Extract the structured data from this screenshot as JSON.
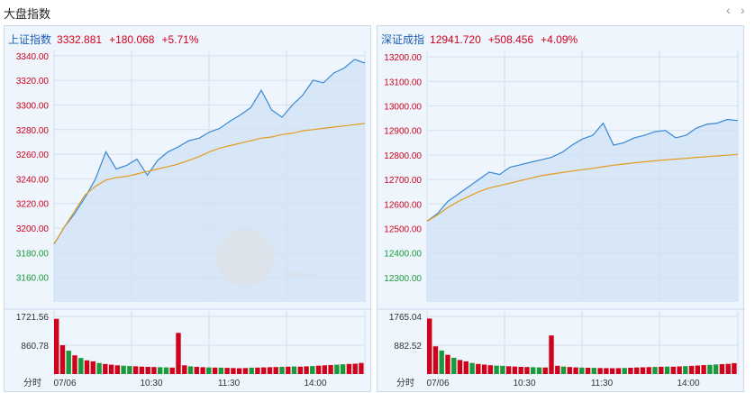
{
  "header": {
    "title": "大盘指数",
    "prev_icon": "‹",
    "next_icon": "›"
  },
  "watermark": {
    "text": "WikiFX"
  },
  "colors": {
    "up": "#d0021b",
    "down": "#1a9a3a",
    "line": "#3a87d4",
    "avg": "#e39b1e",
    "grid": "#d3e0ee"
  },
  "panels": [
    {
      "name": "上证指数",
      "value": "3332.881",
      "change": "+180.068",
      "percent": "+5.71%",
      "volume_label": "分时",
      "chart_data": {
        "type": "line",
        "xlabels": [
          "07/06",
          "10:30",
          "11:30",
          "14:00"
        ],
        "ylim": [
          3140,
          3345
        ],
        "yticks_up": [
          "3340.00",
          "3320.00",
          "3300.00",
          "3280.00",
          "3260.00",
          "3240.00",
          "3220.00",
          "3200.00"
        ],
        "yticks_down": [
          "3180.00",
          "3160.00"
        ],
        "volume_ticks": [
          "1721.56",
          "860.78"
        ],
        "volume_max": 1721.56,
        "series": [
          {
            "values": [
              3187,
              3201,
              3212,
              3225,
              3240,
              3262,
              3248,
              3251,
              3256,
              3243,
              3255,
              3262,
              3266,
              3271,
              3273,
              3278,
              3281,
              3287,
              3292,
              3298,
              3312,
              3296,
              3290,
              3300,
              3308,
              3320,
              3318,
              3326,
              3330,
              3337,
              3334
            ]
          },
          {
            "values": [
              3187,
              3201,
              3214,
              3227,
              3234,
              3239,
              3241,
              3242,
              3244,
              3246,
              3248,
              3250,
              3252,
              3255,
              3258,
              3262,
              3265,
              3267,
              3269,
              3271,
              3273,
              3274,
              3276,
              3277,
              3279,
              3280,
              3281,
              3282,
              3283,
              3284,
              3285
            ]
          }
        ],
        "volume": [
          1650,
          860,
          700,
          560,
          480,
          410,
          380,
          330,
          300,
          280,
          260,
          250,
          240,
          230,
          220,
          215,
          210,
          205,
          200,
          195,
          1230,
          260,
          230,
          215,
          205,
          200,
          195,
          190,
          185,
          180,
          175,
          180,
          190,
          195,
          200,
          205,
          210,
          215,
          220,
          225,
          220,
          230,
          240,
          250,
          260,
          270,
          280,
          290,
          300,
          310,
          330
        ]
      }
    },
    {
      "name": "深证成指",
      "value": "12941.720",
      "change": "+508.456",
      "percent": "+4.09%",
      "volume_label": "分时",
      "chart_data": {
        "type": "line",
        "xlabels": [
          "07/06",
          "10:30",
          "11:30",
          "14:00"
        ],
        "ylim": [
          12200,
          13230
        ],
        "yticks_up": [
          "13200.00",
          "13100.00",
          "13000.00",
          "12900.00",
          "12800.00",
          "12700.00",
          "12600.00",
          "12500.00"
        ],
        "yticks_down": [
          "12400.00",
          "12300.00"
        ],
        "volume_ticks": [
          "1765.04",
          "882.52"
        ],
        "volume_max": 1765.04,
        "series": [
          {
            "values": [
              12530,
              12560,
              12610,
              12640,
              12670,
              12700,
              12730,
              12720,
              12750,
              12760,
              12770,
              12780,
              12790,
              12810,
              12840,
              12865,
              12880,
              12930,
              12840,
              12850,
              12870,
              12880,
              12895,
              12900,
              12870,
              12880,
              12910,
              12925,
              12930,
              12945,
              12940
            ]
          },
          {
            "values": [
              12530,
              12555,
              12585,
              12610,
              12630,
              12650,
              12665,
              12675,
              12685,
              12695,
              12705,
              12715,
              12722,
              12728,
              12734,
              12740,
              12745,
              12752,
              12758,
              12763,
              12768,
              12772,
              12776,
              12780,
              12783,
              12786,
              12790,
              12793,
              12796,
              12799,
              12802
            ]
          }
        ],
        "volume": [
          1700,
          850,
          720,
          590,
          500,
          430,
          390,
          340,
          310,
          290,
          270,
          260,
          250,
          240,
          230,
          220,
          215,
          210,
          205,
          200,
          1180,
          255,
          228,
          214,
          204,
          198,
          194,
          190,
          186,
          182,
          178,
          182,
          188,
          194,
          200,
          206,
          212,
          218,
          224,
          230,
          226,
          234,
          242,
          252,
          262,
          272,
          282,
          292,
          302,
          312,
          335
        ]
      }
    }
  ]
}
